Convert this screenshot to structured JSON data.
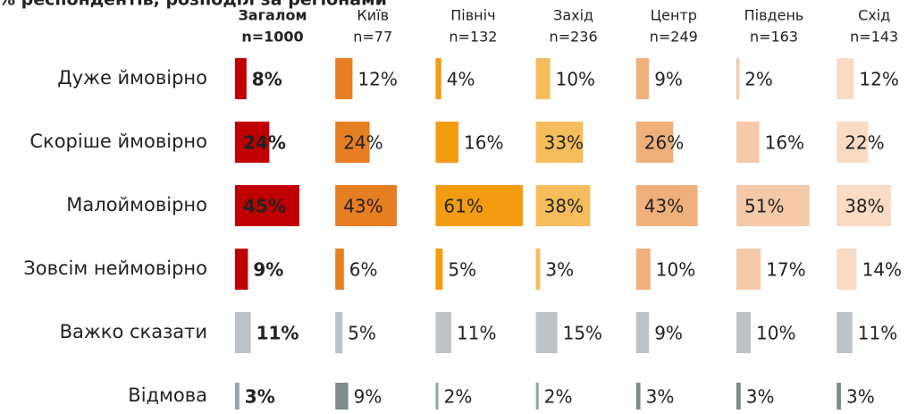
{
  "chart_data": {
    "type": "bar",
    "title": "% респондентів, розподіл за регіонами",
    "categories": [
      "Дуже ймовірно",
      "Скоріше ймовірно",
      "Малоймовірно",
      "Зовсім неймовірно",
      "Важко сказати",
      "Відмова"
    ],
    "series": [
      {
        "name": "Загалом",
        "n": "n=1000",
        "colors": [
          "#c00000",
          "#c00000",
          "#c00000",
          "#c00000",
          "#bdc3c7",
          "#95a5a6"
        ],
        "values": [
          8,
          24,
          45,
          9,
          11,
          3
        ],
        "value_labels": [
          "8%",
          "24%",
          "45%",
          "9%",
          "11%",
          "3%"
        ]
      },
      {
        "name": "Київ",
        "n": "n=77",
        "colors": [
          "#e67e22",
          "#e67e22",
          "#e67e22",
          "#e67e22",
          "#bdc3c7",
          "#7f8c8d"
        ],
        "values": [
          12,
          24,
          43,
          6,
          5,
          9
        ],
        "value_labels": [
          "12%",
          "24%",
          "43%",
          "6%",
          "5%",
          "9%"
        ]
      },
      {
        "name": "Північ",
        "n": "n=132",
        "colors": [
          "#f39c12",
          "#f39c12",
          "#f39c12",
          "#f39c12",
          "#bdc3c7",
          "#95a5a6"
        ],
        "values": [
          4,
          16,
          61,
          5,
          11,
          2
        ],
        "value_labels": [
          "4%",
          "16%",
          "61%",
          "5%",
          "11%",
          "2%"
        ]
      },
      {
        "name": "Захід",
        "n": "n=236",
        "colors": [
          "#f6bd5c",
          "#f6bd5c",
          "#f6bd5c",
          "#f6bd5c",
          "#bdc3c7",
          "#95a5a6"
        ],
        "values": [
          10,
          33,
          38,
          3,
          15,
          2
        ],
        "value_labels": [
          "10%",
          "33%",
          "38%",
          "3%",
          "15%",
          "2%"
        ]
      },
      {
        "name": "Центр",
        "n": "n=249",
        "colors": [
          "#f0b07c",
          "#f0b07c",
          "#f0b07c",
          "#f0b07c",
          "#bdc3c7",
          "#7f8c8d"
        ],
        "values": [
          9,
          26,
          43,
          10,
          9,
          3
        ],
        "value_labels": [
          "9%",
          "26%",
          "43%",
          "10%",
          "9%",
          "3%"
        ]
      },
      {
        "name": "Південь",
        "n": "n=163",
        "colors": [
          "#f6c9a8",
          "#f6c9a8",
          "#f6c9a8",
          "#f6c9a8",
          "#bdc3c7",
          "#7f8c8d"
        ],
        "values": [
          2,
          16,
          51,
          17,
          10,
          3
        ],
        "value_labels": [
          "2%",
          "16%",
          "51%",
          "17%",
          "10%",
          "3%"
        ]
      },
      {
        "name": "Схід",
        "n": "n=143",
        "colors": [
          "#fadcc4",
          "#fadcc4",
          "#fadcc4",
          "#fadcc4",
          "#bdc3c7",
          "#7f8c8d"
        ],
        "values": [
          12,
          22,
          38,
          14,
          11,
          3
        ],
        "value_labels": [
          "12%",
          "22%",
          "38%",
          "14%",
          "11%",
          "3%"
        ]
      }
    ]
  }
}
